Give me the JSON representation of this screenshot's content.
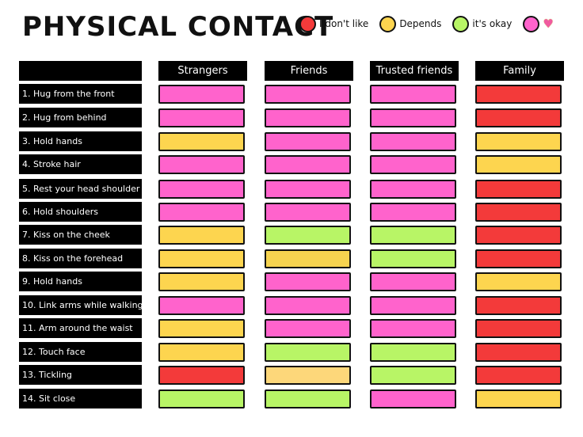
{
  "title": "PHYSICAL CONTACT",
  "colors": {
    "red": "#f33a3a",
    "yellow": "#fdd54f",
    "green": "#b8f566",
    "pink": "#ff63cc",
    "gold": "#f6d34f",
    "peach": "#fdd77a"
  },
  "legend": [
    {
      "color": "red",
      "label": "I don't like"
    },
    {
      "color": "yellow",
      "label": "Depends"
    },
    {
      "color": "green",
      "label": "it's okay"
    },
    {
      "color": "pink",
      "icon": "sparkling-heart-icon"
    }
  ],
  "columns": [
    "Strangers",
    "Friends",
    "Trusted friends",
    "Family"
  ],
  "rows": [
    {
      "label": "1. Hug from the front",
      "cells": [
        "pink",
        "pink",
        "pink",
        "red"
      ]
    },
    {
      "label": "2. Hug from behind",
      "cells": [
        "pink",
        "pink",
        "pink",
        "red"
      ]
    },
    {
      "label": "3. Hold hands",
      "cells": [
        "yellow",
        "pink",
        "pink",
        "yellow"
      ]
    },
    {
      "label": "4. Stroke hair",
      "cells": [
        "pink",
        "pink",
        "pink",
        "yellow"
      ]
    },
    {
      "label": "5. Rest your head shoulder",
      "cells": [
        "pink",
        "pink",
        "pink",
        "red"
      ]
    },
    {
      "label": "6. Hold shoulders",
      "cells": [
        "pink",
        "pink",
        "pink",
        "red"
      ]
    },
    {
      "label": "7. Kiss on the cheek",
      "cells": [
        "yellow",
        "green",
        "green",
        "red"
      ]
    },
    {
      "label": "8. Kiss on the forehead",
      "cells": [
        "yellow",
        "gold",
        "green",
        "red"
      ]
    },
    {
      "label": "9. Hold hands",
      "cells": [
        "yellow",
        "pink",
        "pink",
        "yellow"
      ]
    },
    {
      "label": "10. Link arms while walking",
      "cells": [
        "pink",
        "pink",
        "pink",
        "red"
      ]
    },
    {
      "label": "11. Arm around the waist",
      "cells": [
        "yellow",
        "pink",
        "pink",
        "red"
      ]
    },
    {
      "label": "12. Touch face",
      "cells": [
        "yellow",
        "green",
        "green",
        "red"
      ]
    },
    {
      "label": "13. Tickling",
      "cells": [
        "red",
        "peach",
        "green",
        "red"
      ]
    },
    {
      "label": "14. Sit close",
      "cells": [
        "green",
        "green",
        "pink",
        "yellow"
      ]
    }
  ]
}
